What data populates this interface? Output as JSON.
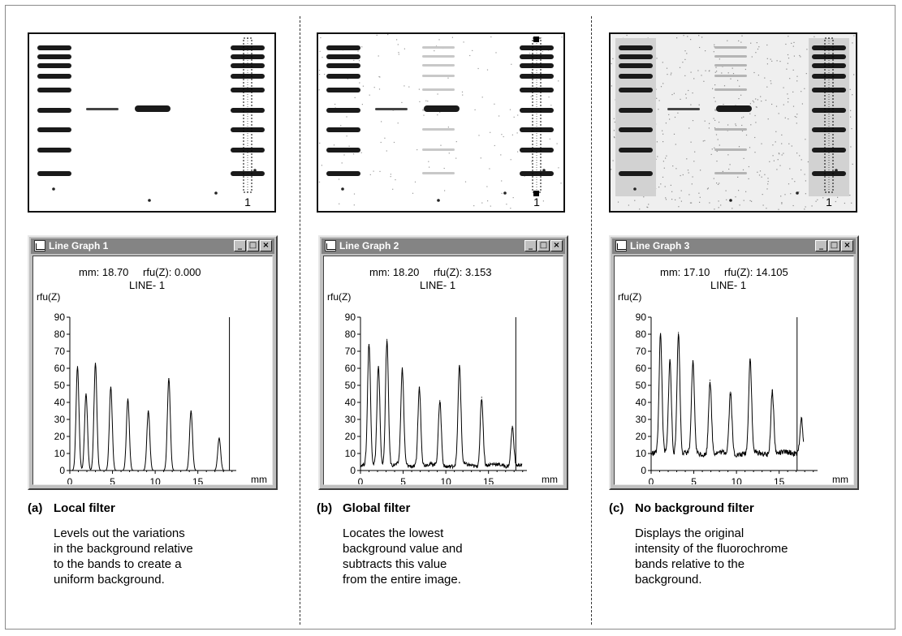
{
  "panels": [
    {
      "window_title": "Line Graph 1",
      "readout": {
        "mm_label": "mm:",
        "mm_value": "18.70",
        "rfu_label": "rfu(Z):",
        "rfu_value": "0.000",
        "line_label": "LINE-",
        "line_value": "1"
      },
      "lane_marker": "1",
      "caption_letter": "(a)",
      "caption_title": "Local filter",
      "caption_lines": [
        "Levels out the variations",
        "in the background relative",
        "to the bands to create a",
        "uniform background."
      ],
      "background_level": 0.0,
      "gel_bg": "#ffffff"
    },
    {
      "window_title": "Line Graph 2",
      "readout": {
        "mm_label": "mm:",
        "mm_value": "18.20",
        "rfu_label": "rfu(Z):",
        "rfu_value": "3.153",
        "line_label": "LINE-",
        "line_value": "1"
      },
      "lane_marker": "1",
      "caption_letter": "(b)",
      "caption_title": "Global filter",
      "caption_lines": [
        "Locates the lowest",
        "background value and",
        "subtracts this value",
        "from the entire image."
      ],
      "background_level": 3,
      "gel_bg": "#ffffff"
    },
    {
      "window_title": "Line Graph 3",
      "readout": {
        "mm_label": "mm:",
        "mm_value": "17.10",
        "rfu_label": "rfu(Z):",
        "rfu_value": "14.105",
        "line_label": "LINE-",
        "line_value": "1"
      },
      "lane_marker": "1",
      "caption_letter": "(c)",
      "caption_title": "No background filter",
      "caption_lines": [
        "Displays the original",
        "intensity of the fluorochrome",
        "bands relative to the",
        "background."
      ],
      "background_level": 10,
      "gel_bg": "#efefef"
    }
  ],
  "window_buttons": [
    "_",
    "□",
    "×"
  ],
  "chart_data": [
    {
      "type": "line",
      "title": "Line Graph 1",
      "ylabel": "rfu(Z)",
      "xlabel": "mm",
      "ylim": [
        0,
        90
      ],
      "xlim": [
        0,
        19.5
      ],
      "yticks": [
        0,
        10,
        20,
        30,
        40,
        50,
        60,
        70,
        80,
        90
      ],
      "xticks": [
        0,
        5,
        10,
        15
      ],
      "cursor_x": 18.7,
      "peaks": [
        {
          "x": 0.9,
          "y": 61
        },
        {
          "x": 1.9,
          "y": 45
        },
        {
          "x": 3.0,
          "y": 63
        },
        {
          "x": 4.8,
          "y": 49
        },
        {
          "x": 6.8,
          "y": 42
        },
        {
          "x": 9.2,
          "y": 35
        },
        {
          "x": 11.6,
          "y": 54
        },
        {
          "x": 14.2,
          "y": 35
        },
        {
          "x": 17.5,
          "y": 19
        }
      ]
    },
    {
      "type": "line",
      "title": "Line Graph 2",
      "ylabel": "rfu(Z)",
      "xlabel": "mm",
      "ylim": [
        0,
        90
      ],
      "xlim": [
        0,
        19.5
      ],
      "yticks": [
        0,
        10,
        20,
        30,
        40,
        50,
        60,
        70,
        80,
        90
      ],
      "xticks": [
        0,
        5,
        10,
        15
      ],
      "cursor_x": 18.2,
      "peaks": [
        {
          "x": 1.0,
          "y": 74
        },
        {
          "x": 2.1,
          "y": 61
        },
        {
          "x": 3.1,
          "y": 77
        },
        {
          "x": 4.9,
          "y": 59
        },
        {
          "x": 6.9,
          "y": 49
        },
        {
          "x": 9.3,
          "y": 41
        },
        {
          "x": 11.6,
          "y": 61
        },
        {
          "x": 14.2,
          "y": 43
        },
        {
          "x": 17.8,
          "y": 26
        }
      ]
    },
    {
      "type": "line",
      "title": "Line Graph 3",
      "ylabel": "rfu(Z)",
      "xlabel": "mm",
      "ylim": [
        0,
        90
      ],
      "xlim": [
        0,
        19.5
      ],
      "yticks": [
        0,
        10,
        20,
        30,
        40,
        50,
        60,
        70,
        80,
        90
      ],
      "xticks": [
        0,
        5,
        10,
        15
      ],
      "cursor_x": 17.1,
      "peaks": [
        {
          "x": 1.1,
          "y": 79
        },
        {
          "x": 2.2,
          "y": 65
        },
        {
          "x": 3.2,
          "y": 81
        },
        {
          "x": 4.9,
          "y": 63
        },
        {
          "x": 6.9,
          "y": 53
        },
        {
          "x": 9.3,
          "y": 46
        },
        {
          "x": 11.6,
          "y": 65
        },
        {
          "x": 14.2,
          "y": 47
        },
        {
          "x": 17.6,
          "y": 31
        }
      ]
    }
  ]
}
